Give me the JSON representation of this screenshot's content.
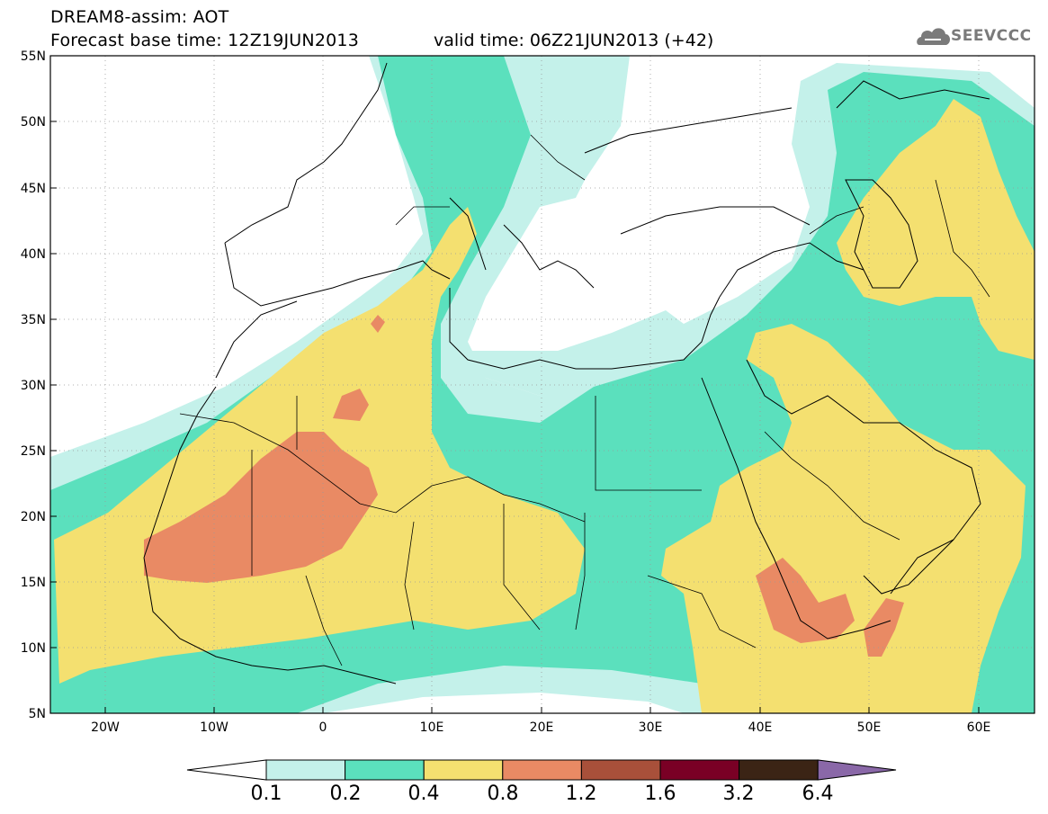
{
  "header": {
    "title_line1": "DREAM8-assim: AOT",
    "title_line2_base": "Forecast base time: 12Z19JUN2013",
    "title_line2_valid": "valid time: 06Z21JUN2013 (+42)",
    "logo_text": "SEEVCCC"
  },
  "map": {
    "lon_range": [
      -25,
      65
    ],
    "lat_range": [
      5,
      55
    ],
    "lat_labels": [
      "55N",
      "50N",
      "45N",
      "40N",
      "35N",
      "30N",
      "25N",
      "20N",
      "15N",
      "10N",
      "5N"
    ],
    "lon_labels": [
      "20W",
      "10W",
      "0",
      "10E",
      "20E",
      "30E",
      "40E",
      "50E",
      "60E"
    ],
    "grid": true
  },
  "colorbar": {
    "labels": [
      "0.1",
      "0.2",
      "0.4",
      "0.8",
      "1.2",
      "1.6",
      "3.2",
      "6.4"
    ],
    "colors": [
      "#ffffff",
      "#c4f1ea",
      "#5be0bd",
      "#f4e070",
      "#e98a64",
      "#a8503a",
      "#7a0025",
      "#3b2415",
      "#8a68a8"
    ]
  },
  "colors": {
    "aot_0_1": "#c4f1ea",
    "aot_0_2": "#5be0bd",
    "aot_0_4": "#f4e070",
    "aot_0_8": "#e98a64"
  }
}
